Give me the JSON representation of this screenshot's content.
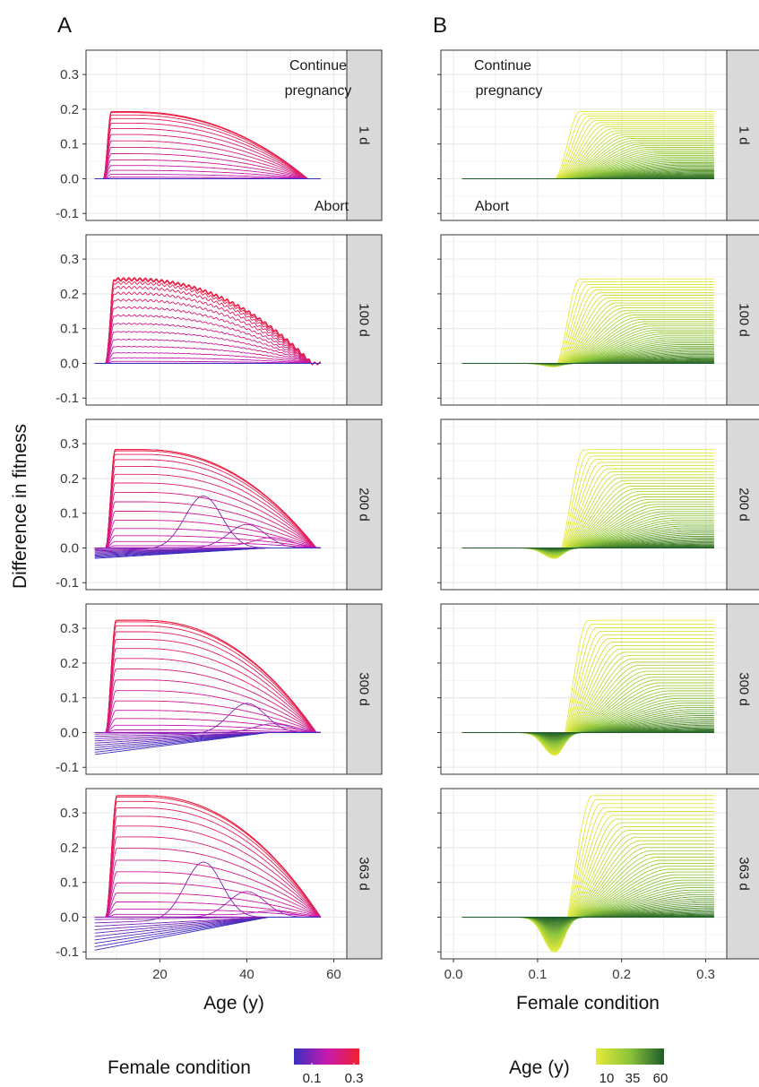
{
  "figure": {
    "panel_letters": [
      "A",
      "B"
    ],
    "y_axis_title": "Difference in fitness",
    "annotations": {
      "upper_line1": "Continue",
      "upper_line2": "pregnancy",
      "lower": "Abort"
    }
  },
  "legends": {
    "left": {
      "title": "Female condition",
      "tick_labels": [
        "0.1",
        "0.3"
      ],
      "colors": [
        "#3b2fbf",
        "#c419b0",
        "#f2202f"
      ]
    },
    "right": {
      "title": "Age (y)",
      "tick_labels": [
        "10",
        "35",
        "60"
      ],
      "colors": [
        "#e5ea3a",
        "#8bc43a",
        "#1e5c2a"
      ]
    }
  },
  "chart_data": [
    {
      "id": "A",
      "type": "line",
      "xlabel": "Age (y)",
      "ylabel": "Difference in fitness",
      "xlim": [
        3,
        63
      ],
      "ylim": [
        -0.12,
        0.37
      ],
      "x_ticks": [
        20,
        40,
        60
      ],
      "x_tick_labels": [
        "20",
        "40",
        "60"
      ],
      "y_ticks": [
        -0.1,
        0.0,
        0.1,
        0.2,
        0.3
      ],
      "y_tick_labels": [
        "-0.1",
        "0.0",
        "0.1",
        "0.2",
        "0.3"
      ],
      "grid": true,
      "color_scale": {
        "variable": "Female condition",
        "range": [
          0.0,
          0.31
        ],
        "colors": [
          "#3b2fbf",
          "#c419b0",
          "#f2202f"
        ]
      },
      "facets": [
        {
          "label": "1 d",
          "ymax": 0.193,
          "onset": 7.0,
          "rise": 1.8,
          "peak_age": 13,
          "zero_age": 54,
          "neg_min": 0.0,
          "mid_bumps": []
        },
        {
          "label": "100 d",
          "ymax": 0.243,
          "onset": 7.5,
          "rise": 2.0,
          "peak_age": 13,
          "zero_age": 55,
          "neg_min": 0.0,
          "mid_bumps": [],
          "wavy": true
        },
        {
          "label": "200 d",
          "ymax": 0.283,
          "onset": 7.5,
          "rise": 2.2,
          "peak_age": 16,
          "zero_age": 56,
          "neg_min": -0.03,
          "mid_bumps": [
            [
              0.168,
              30
            ],
            [
              0.075,
              40
            ],
            [
              0.03,
              46
            ]
          ]
        },
        {
          "label": "300 d",
          "ymax": 0.323,
          "onset": 7.5,
          "rise": 2.4,
          "peak_age": 16,
          "zero_age": 56,
          "neg_min": -0.063,
          "mid_bumps": [
            [
              0.095,
              40
            ],
            [
              0.028,
              46
            ]
          ]
        },
        {
          "label": "363 d",
          "ymax": 0.35,
          "onset": 7.5,
          "rise": 2.6,
          "peak_age": 16,
          "zero_age": 57,
          "neg_min": -0.095,
          "mid_bumps": [
            [
              0.183,
              30
            ],
            [
              0.082,
              40
            ],
            [
              0.015,
              46
            ]
          ]
        }
      ]
    },
    {
      "id": "B",
      "type": "line",
      "xlabel": "Female condition",
      "ylabel": "Difference in fitness",
      "xlim": [
        -0.015,
        0.325
      ],
      "ylim": [
        -0.12,
        0.37
      ],
      "x_ticks": [
        0.0,
        0.1,
        0.2,
        0.3
      ],
      "x_tick_labels": [
        "0.0",
        "0.1",
        "0.2",
        "0.3"
      ],
      "y_ticks": [
        -0.1,
        0.0,
        0.1,
        0.2,
        0.3
      ],
      "grid": true,
      "color_scale": {
        "variable": "Age (y)",
        "range": [
          10,
          60
        ],
        "colors": [
          "#e5ea3a",
          "#8bc43a",
          "#1e5c2a"
        ]
      },
      "facets": [
        {
          "label": "1 d",
          "ymax": 0.193,
          "threshold": 0.12,
          "rise_end": 0.15,
          "dip": 0.0
        },
        {
          "label": "100 d",
          "ymax": 0.243,
          "threshold": 0.12,
          "rise_end": 0.15,
          "dip": -0.01
        },
        {
          "label": "200 d",
          "ymax": 0.283,
          "threshold": 0.123,
          "rise_end": 0.155,
          "dip": -0.03
        },
        {
          "label": "300 d",
          "ymax": 0.323,
          "threshold": 0.125,
          "rise_end": 0.16,
          "dip": -0.065
        },
        {
          "label": "363 d",
          "ymax": 0.35,
          "threshold": 0.127,
          "rise_end": 0.165,
          "dip": -0.1
        }
      ]
    }
  ]
}
